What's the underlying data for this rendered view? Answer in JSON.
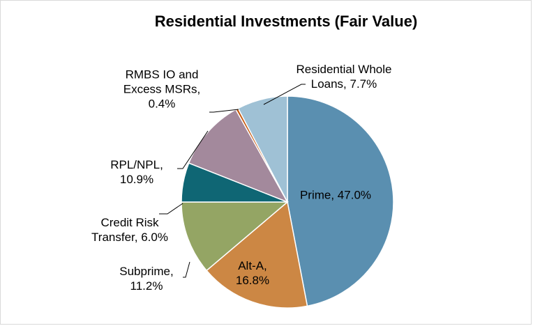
{
  "chart_data": {
    "type": "pie",
    "title": "Residential Investments (Fair Value)",
    "categories": [
      "Prime",
      "Alt-A",
      "Subprime",
      "Credit Risk Transfer",
      "RPL/NPL",
      "RMBS IO and Excess MSRs",
      "Residential Whole Loans"
    ],
    "values": [
      47.0,
      16.8,
      11.2,
      6.0,
      10.9,
      0.4,
      7.7
    ],
    "value_labels": [
      "Prime, 47.0%",
      "Alt-A, 16.8%",
      "Subprime, 11.2%",
      "Credit Risk Transfer, 6.0%",
      "RPL/NPL, 10.9%",
      "RMBS IO and Excess MSRs, 0.4%",
      "Residential Whole Loans, 7.7%"
    ],
    "colors": [
      "#5a8fb0",
      "#cc8744",
      "#94a564",
      "#0f6674",
      "#a3899c",
      "#c55a11",
      "#9fc1d5"
    ]
  }
}
